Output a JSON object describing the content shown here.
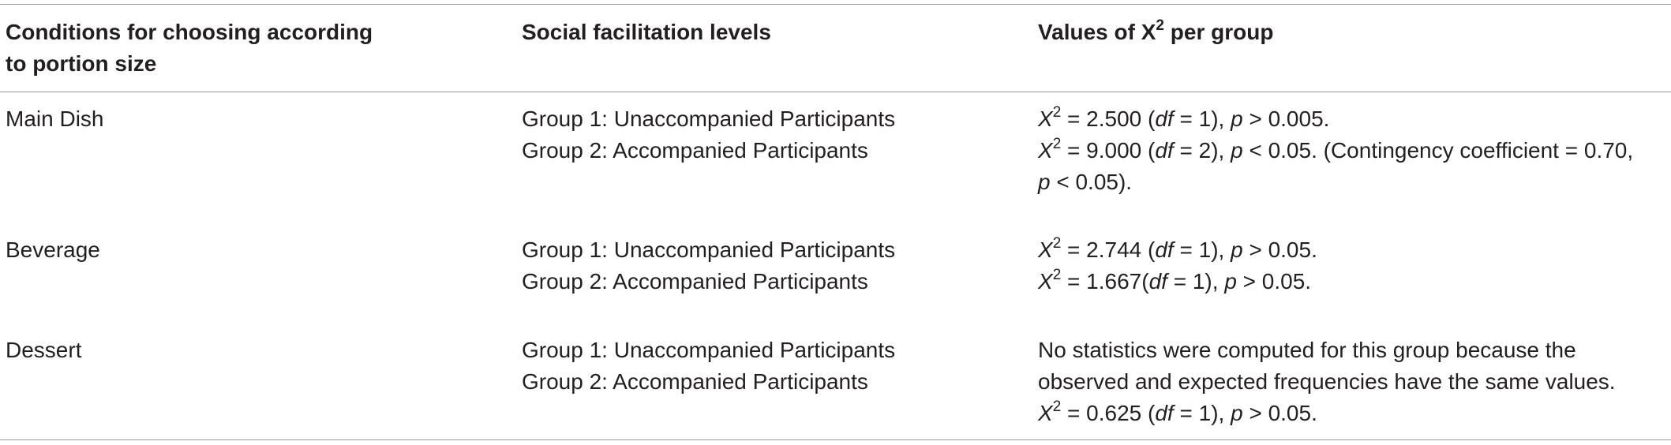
{
  "header": {
    "col1_line1": "Conditions for choosing according",
    "col1_line2": "to portion size",
    "col2": "Social facilitation levels",
    "col3_prefix": "Values of X",
    "col3_sup": "2",
    "col3_suffix": " per group"
  },
  "rows": [
    {
      "condition": "Main Dish",
      "group1": "Group 1: Unaccompanied Participants",
      "group2": "Group 2: Accompanied Participants",
      "values": [
        {
          "stat": "X",
          "sup": "2",
          "eq": " = 2.500 (",
          "df": "df",
          "dfv": " = 1), ",
          "p": "p",
          "rest": " > 0.005."
        },
        {
          "stat": "X",
          "sup": "2",
          "eq": " = 9.000 (",
          "df": "df",
          "dfv": " = 2), ",
          "p": "p",
          "rest": " < 0.05. (Contingency coefficient = 0.70,"
        },
        {
          "p": "p",
          "rest": " < 0.05)."
        }
      ]
    },
    {
      "condition": "Beverage",
      "group1": "Group 1: Unaccompanied Participants",
      "group2": "Group 2: Accompanied Participants",
      "values": [
        {
          "stat": "X",
          "sup": "2",
          "eq": " = 2.744 (",
          "df": "df",
          "dfv": " = 1), ",
          "p": "p",
          "rest": " > 0.05."
        },
        {
          "stat": "X",
          "sup": "2",
          "eq": " = 1.667(",
          "df": "df",
          "dfv": " = 1), ",
          "p": "p",
          "rest": " > 0.05."
        }
      ]
    },
    {
      "condition": "Dessert",
      "group1": "Group 1: Unaccompanied Participants",
      "group2": "Group 2: Accompanied Participants",
      "note_line1": "No statistics were computed for this group because the",
      "note_line2": "observed and expected frequencies have the same values.",
      "values": [
        {
          "stat": "X",
          "sup": "2",
          "eq": " = 0.625 (",
          "df": "df",
          "dfv": " = 1), ",
          "p": "p",
          "rest": " > 0.05."
        }
      ]
    }
  ]
}
